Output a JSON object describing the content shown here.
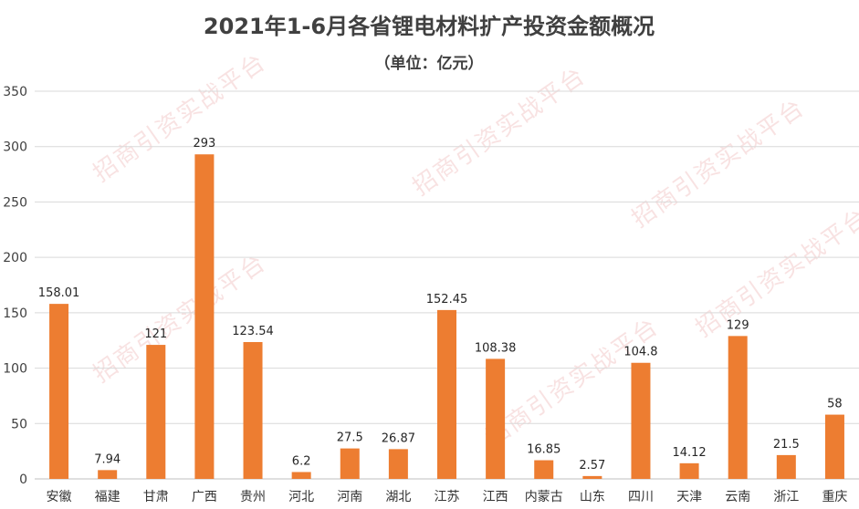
{
  "chart_data": {
    "type": "bar",
    "title": "2021年1-6月各省锂电材料扩产投资金额概况",
    "subtitle": "（单位：亿元）",
    "xlabel": "",
    "ylabel": "",
    "categories": [
      "安徽",
      "福建",
      "甘肃",
      "广西",
      "贵州",
      "河北",
      "河南",
      "湖北",
      "江苏",
      "江西",
      "内蒙古",
      "山东",
      "四川",
      "天津",
      "云南",
      "浙江",
      "重庆"
    ],
    "values": [
      158.01,
      7.94,
      121,
      293,
      123.54,
      6.2,
      27.5,
      26.87,
      152.45,
      108.38,
      16.85,
      2.57,
      104.8,
      14.12,
      129,
      21.5,
      58
    ],
    "value_labels": [
      "158.01",
      "7.94",
      "121",
      "293",
      "123.54",
      "6.2",
      "27.5",
      "26.87",
      "152.45",
      "108.38",
      "16.85",
      "2.57",
      "104.8",
      "14.12",
      "129",
      "21.5",
      "58"
    ],
    "yticks": [
      "0",
      "50",
      "100",
      "150",
      "200",
      "250",
      "300",
      "350"
    ],
    "ylim": [
      0,
      350
    ],
    "grid": true,
    "legend": "none",
    "bar_color": "#ed7d31",
    "grid_color": "#d9d9d9",
    "watermark": "招商引资实战平台"
  }
}
